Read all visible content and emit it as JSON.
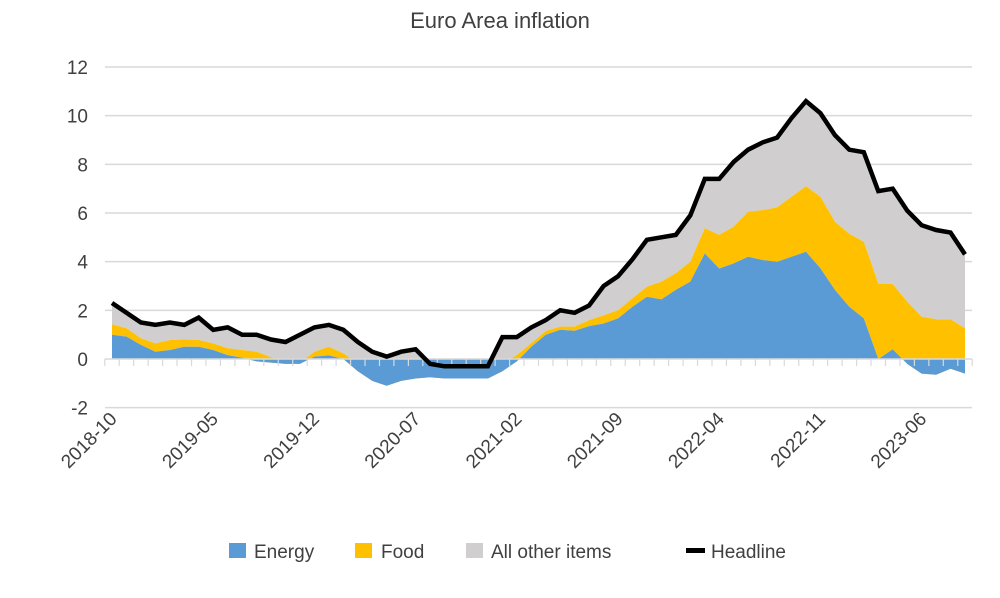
{
  "chart_data": {
    "type": "area",
    "stacked": true,
    "title": "Euro Area inflation",
    "xlabel": "",
    "ylabel": "",
    "ylim": [
      -2,
      12
    ],
    "yticks": [
      -2,
      0,
      2,
      4,
      6,
      8,
      10,
      12
    ],
    "grid": true,
    "legend_position": "bottom",
    "x_start": "2018-10",
    "x_end": "2023-09",
    "x_tick_labels": [
      "2018-10",
      "2019-05",
      "2019-12",
      "2020-07",
      "2021-02",
      "2021-09",
      "2022-04",
      "2022-11",
      "2023-06"
    ],
    "series": [
      {
        "name": "Energy",
        "kind": "area",
        "color": "#5B9BD5",
        "values": [
          1.0,
          0.92,
          0.58,
          0.3,
          0.37,
          0.5,
          0.5,
          0.37,
          0.16,
          0.05,
          -0.1,
          -0.15,
          -0.2,
          -0.2,
          0.1,
          0.15,
          0.0,
          -0.5,
          -0.9,
          -1.1,
          -0.9,
          -0.8,
          -0.75,
          -0.8,
          -0.8,
          -0.8,
          -0.8,
          -0.5,
          -0.1,
          0.5,
          1.0,
          1.2,
          1.16,
          1.35,
          1.46,
          1.67,
          2.15,
          2.56,
          2.45,
          2.84,
          3.18,
          4.34,
          3.72,
          3.93,
          4.2,
          4.07,
          4.0,
          4.2,
          4.41,
          3.73,
          2.84,
          2.15,
          1.67,
          0.0,
          0.4,
          -0.2,
          -0.6,
          -0.65,
          -0.4,
          -0.6
        ]
      },
      {
        "name": "Food",
        "kind": "area",
        "color": "#FFC000",
        "values": [
          0.42,
          0.34,
          0.27,
          0.34,
          0.41,
          0.3,
          0.28,
          0.27,
          0.28,
          0.32,
          0.4,
          0.22,
          0.1,
          0.05,
          0.2,
          0.35,
          0.23,
          0.32,
          0.45,
          0.44,
          0.45,
          0.42,
          0.37,
          0.4,
          0.4,
          0.4,
          0.4,
          0.32,
          0.26,
          0.15,
          0.15,
          0.13,
          0.17,
          0.25,
          0.34,
          0.33,
          0.35,
          0.41,
          0.73,
          0.68,
          0.82,
          1.03,
          1.38,
          1.51,
          1.85,
          2.05,
          2.23,
          2.47,
          2.69,
          2.94,
          2.8,
          2.99,
          3.15,
          3.1,
          2.68,
          2.56,
          2.34,
          2.28,
          2.03,
          1.86
        ]
      },
      {
        "name": "All other items",
        "kind": "area",
        "color": "#D0CECE",
        "values": [
          0.88,
          0.64,
          0.65,
          0.76,
          0.72,
          0.6,
          0.92,
          0.56,
          0.86,
          0.63,
          0.7,
          0.73,
          0.8,
          1.15,
          1.0,
          0.9,
          0.97,
          0.88,
          0.75,
          0.76,
          0.75,
          0.78,
          0.18,
          0.1,
          0.1,
          0.1,
          0.1,
          1.08,
          0.74,
          0.65,
          0.45,
          0.67,
          0.57,
          0.6,
          1.2,
          1.4,
          1.6,
          1.93,
          1.82,
          1.58,
          1.9,
          2.03,
          2.3,
          2.66,
          2.55,
          2.78,
          2.87,
          3.23,
          3.5,
          3.43,
          3.56,
          3.46,
          3.68,
          3.8,
          3.92,
          3.74,
          3.76,
          3.67,
          3.57,
          3.04
        ]
      },
      {
        "name": "Headline",
        "kind": "line",
        "color": "#000000",
        "values": [
          2.3,
          1.9,
          1.5,
          1.4,
          1.5,
          1.4,
          1.7,
          1.2,
          1.3,
          1.0,
          1.0,
          0.8,
          0.7,
          1.0,
          1.3,
          1.4,
          1.2,
          0.7,
          0.3,
          0.1,
          0.3,
          0.4,
          -0.2,
          -0.3,
          -0.3,
          -0.3,
          -0.3,
          0.9,
          0.9,
          1.3,
          1.6,
          2.0,
          1.9,
          2.2,
          3.0,
          3.4,
          4.1,
          4.9,
          5.0,
          5.1,
          5.9,
          7.4,
          7.4,
          8.1,
          8.6,
          8.9,
          9.1,
          9.9,
          10.6,
          10.1,
          9.2,
          8.6,
          8.5,
          6.9,
          7.0,
          6.1,
          5.5,
          5.3,
          5.2,
          4.3
        ]
      }
    ]
  }
}
